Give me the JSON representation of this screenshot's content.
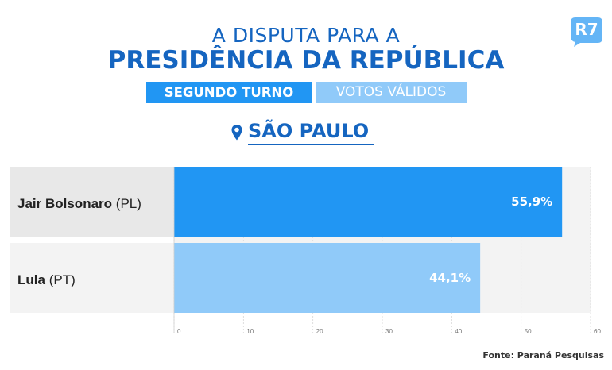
{
  "brand": {
    "logo_text": "R7",
    "logo_color": "#64b5f6"
  },
  "header": {
    "title_line1": "A DISPUTA PARA A",
    "title_line2": "PRESIDÊNCIA DA REPÚBLICA",
    "round_label": "SEGUNDO TURNO",
    "metric_label": "VOTOS VÁLIDOS"
  },
  "location": {
    "icon": "location-pin-icon",
    "name": "SÃO PAULO"
  },
  "source": "Fonte: Paraná Pesquisas",
  "colors": {
    "title": "#1565c0",
    "bolsonaro_bar": "#2196f3",
    "lula_bar": "#90caf9",
    "category_bg_1": "#e8e8e8",
    "category_bg_2": "#f3f3f3",
    "plot_bg": "#f3f3f3"
  },
  "chart_data": {
    "type": "bar",
    "orientation": "horizontal",
    "categories": [
      {
        "name": "Jair Bolsonaro",
        "party": "(PL)"
      },
      {
        "name": "Lula",
        "party": "(PT)"
      }
    ],
    "values": [
      55.9,
      44.1
    ],
    "value_labels": [
      "55,9%",
      "44,1%"
    ],
    "xlim": [
      0,
      60
    ],
    "xticks": [
      "0",
      "10",
      "20",
      "30",
      "40",
      "50",
      "60"
    ],
    "grid": true
  }
}
